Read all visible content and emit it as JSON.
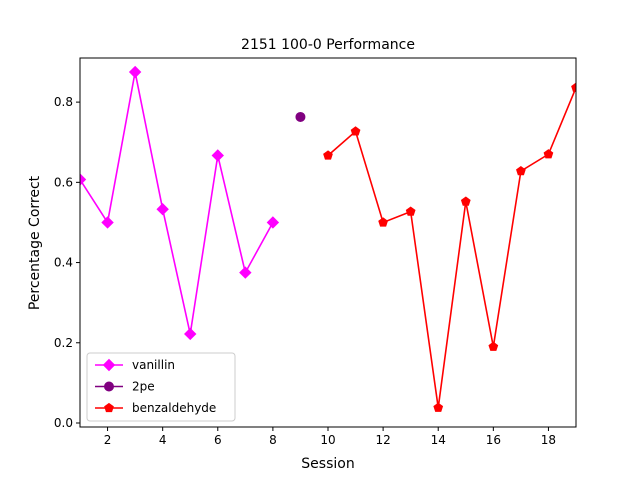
{
  "chart_data": {
    "type": "line",
    "title": "2151 100-0 Performance",
    "xlabel": "Session",
    "ylabel": "Percentage Correct",
    "xlim": [
      1,
      19
    ],
    "ylim": [
      -0.01,
      0.91
    ],
    "xticks": [
      2,
      4,
      6,
      8,
      10,
      12,
      14,
      16,
      18
    ],
    "yticks": [
      0.0,
      0.2,
      0.4,
      0.6,
      0.8
    ],
    "legend_position": "lower-left",
    "grid": false,
    "series": [
      {
        "name": "vanillin",
        "color": "#ff00ff",
        "marker": "diamond",
        "x": [
          1,
          2,
          3,
          4,
          5,
          6,
          7,
          8
        ],
        "y": [
          0.607,
          0.5,
          0.875,
          0.533,
          0.222,
          0.667,
          0.375,
          0.5
        ]
      },
      {
        "name": "2pe",
        "color": "#800080",
        "marker": "circle",
        "x": [
          9
        ],
        "y": [
          0.763
        ]
      },
      {
        "name": "benzaldehyde",
        "color": "#ff0000",
        "marker": "pentagon",
        "x": [
          10,
          11,
          12,
          13,
          14,
          15,
          16,
          17,
          18,
          19
        ],
        "y": [
          0.667,
          0.727,
          0.5,
          0.527,
          0.038,
          0.552,
          0.19,
          0.628,
          0.67,
          0.836
        ]
      }
    ]
  }
}
